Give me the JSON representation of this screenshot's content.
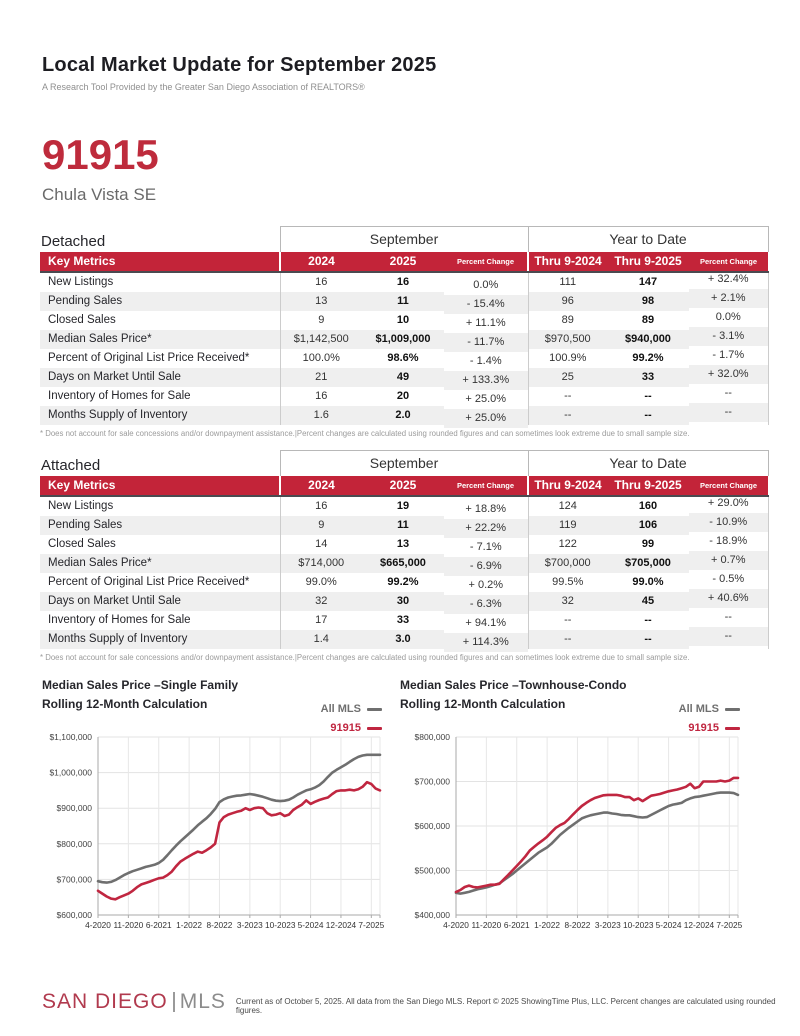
{
  "page": {
    "title": "Local Market Update for September 2025",
    "subtitle": "A Research Tool Provided by the Greater San Diego Association of REALTORS®",
    "zip_code": "91915",
    "area_name": "Chula Vista SE"
  },
  "colors": {
    "brand_red": "#C32439",
    "chart_red": "#C02640",
    "chart_gray": "#6F6F6F"
  },
  "tables": [
    {
      "section_label": "Detached",
      "group1_label": "September",
      "group2_label": "Year to Date",
      "header": [
        "Key Metrics",
        "2024",
        "2025",
        "Percent Change",
        "Thru 9-2024",
        "Thru 9-2025",
        "Percent Change"
      ],
      "rows": [
        [
          "New Listings",
          "16",
          "16",
          "0.0%",
          "111",
          "147",
          "+ 32.4%"
        ],
        [
          "Pending Sales",
          "13",
          "11",
          "- 15.4%",
          "96",
          "98",
          "+ 2.1%"
        ],
        [
          "Closed Sales",
          "9",
          "10",
          "+ 11.1%",
          "89",
          "89",
          "0.0%"
        ],
        [
          "Median Sales Price*",
          "$1,142,500",
          "$1,009,000",
          "- 11.7%",
          "$970,500",
          "$940,000",
          "- 3.1%"
        ],
        [
          "Percent of Original List Price Received*",
          "100.0%",
          "98.6%",
          "- 1.4%",
          "100.9%",
          "99.2%",
          "- 1.7%"
        ],
        [
          "Days on Market Until Sale",
          "21",
          "49",
          "+ 133.3%",
          "25",
          "33",
          "+ 32.0%"
        ],
        [
          "Inventory of Homes for Sale",
          "16",
          "20",
          "+ 25.0%",
          "--",
          "--",
          "--"
        ],
        [
          "Months Supply of Inventory",
          "1.6",
          "2.0",
          "+ 25.0%",
          "--",
          "--",
          "--"
        ]
      ],
      "footnote": "* Does not account for sale concessions and/or downpayment assistance.|Percent changes are calculated using rounded figures and can sometimes look extreme due to small sample size."
    },
    {
      "section_label": "Attached",
      "group1_label": "September",
      "group2_label": "Year to Date",
      "header": [
        "Key Metrics",
        "2024",
        "2025",
        "Percent Change",
        "Thru 9-2024",
        "Thru 9-2025",
        "Percent Change"
      ],
      "rows": [
        [
          "New Listings",
          "16",
          "19",
          "+ 18.8%",
          "124",
          "160",
          "+ 29.0%"
        ],
        [
          "Pending Sales",
          "9",
          "11",
          "+ 22.2%",
          "119",
          "106",
          "- 10.9%"
        ],
        [
          "Closed Sales",
          "14",
          "13",
          "- 7.1%",
          "122",
          "99",
          "- 18.9%"
        ],
        [
          "Median Sales Price*",
          "$714,000",
          "$665,000",
          "- 6.9%",
          "$700,000",
          "$705,000",
          "+ 0.7%"
        ],
        [
          "Percent of Original List Price Received*",
          "99.0%",
          "99.2%",
          "+ 0.2%",
          "99.5%",
          "99.0%",
          "- 0.5%"
        ],
        [
          "Days on Market Until Sale",
          "32",
          "30",
          "- 6.3%",
          "32",
          "45",
          "+ 40.6%"
        ],
        [
          "Inventory of Homes for Sale",
          "17",
          "33",
          "+ 94.1%",
          "--",
          "--",
          "--"
        ],
        [
          "Months Supply of Inventory",
          "1.4",
          "3.0",
          "+ 114.3%",
          "--",
          "--",
          "--"
        ]
      ],
      "footnote": "* Does not account for sale concessions and/or downpayment assistance.|Percent changes are calculated using rounded figures and can sometimes look extreme due to small sample size."
    }
  ],
  "chart_data": [
    {
      "type": "line",
      "title_line1": "Median Sales Price –Single Family",
      "title_line2": "Rolling 12-Month Calculation",
      "legend_position": "top-right",
      "grid": true,
      "ylim": [
        600000,
        1100000
      ],
      "ytick_step": 100000,
      "ytick_labels": [
        "$600,000",
        "$700,000",
        "$800,000",
        "$900,000",
        "$1,000,000",
        "$1,100,000"
      ],
      "x": [
        "4-2020",
        "5-2020",
        "6-2020",
        "7-2020",
        "8-2020",
        "9-2020",
        "10-2020",
        "11-2020",
        "12-2020",
        "1-2021",
        "2-2021",
        "3-2021",
        "4-2021",
        "5-2021",
        "6-2021",
        "7-2021",
        "8-2021",
        "9-2021",
        "10-2021",
        "11-2021",
        "12-2021",
        "1-2022",
        "2-2022",
        "3-2022",
        "4-2022",
        "5-2022",
        "6-2022",
        "7-2022",
        "8-2022",
        "9-2022",
        "10-2022",
        "11-2022",
        "12-2022",
        "1-2023",
        "2-2023",
        "3-2023",
        "4-2023",
        "5-2023",
        "6-2023",
        "7-2023",
        "8-2023",
        "9-2023",
        "10-2023",
        "11-2023",
        "12-2023",
        "1-2024",
        "2-2024",
        "3-2024",
        "4-2024",
        "5-2024",
        "6-2024",
        "7-2024",
        "8-2024",
        "9-2024",
        "10-2024",
        "11-2024",
        "12-2024",
        "1-2025",
        "2-2025",
        "3-2025",
        "4-2025",
        "5-2025",
        "6-2025",
        "7-2025",
        "8-2025",
        "9-2025"
      ],
      "x_tick_indices": [
        0,
        7,
        14,
        21,
        28,
        35,
        42,
        49,
        56,
        63
      ],
      "x_tick_labels": [
        "4-2020",
        "11-2020",
        "6-2021",
        "1-2022",
        "8-2022",
        "3-2023",
        "10-2023",
        "5-2024",
        "12-2024",
        "7-2025"
      ],
      "series": [
        {
          "name": "All MLS",
          "color": "#6F6F6F",
          "values": [
            695000,
            692000,
            691000,
            693000,
            698000,
            705000,
            712000,
            718000,
            723000,
            727000,
            731000,
            735000,
            738000,
            741000,
            746000,
            755000,
            768000,
            782000,
            795000,
            807000,
            818000,
            829000,
            840000,
            852000,
            862000,
            872000,
            884000,
            898000,
            917000,
            925000,
            930000,
            933000,
            935000,
            936000,
            938000,
            940000,
            938000,
            935000,
            932000,
            928000,
            924000,
            921000,
            920000,
            921000,
            924000,
            930000,
            938000,
            944000,
            950000,
            953000,
            958000,
            965000,
            975000,
            988000,
            1000000,
            1008000,
            1015000,
            1022000,
            1030000,
            1038000,
            1044000,
            1048000,
            1050000,
            1050000,
            1050000,
            1050000
          ]
        },
        {
          "name": "91915",
          "color": "#C02640",
          "values": [
            668000,
            660000,
            652000,
            646000,
            644000,
            650000,
            655000,
            660000,
            668000,
            678000,
            686000,
            690000,
            694000,
            699000,
            703000,
            705000,
            712000,
            722000,
            737000,
            750000,
            758000,
            765000,
            772000,
            778000,
            775000,
            782000,
            790000,
            800000,
            860000,
            875000,
            882000,
            886000,
            890000,
            893000,
            900000,
            895000,
            900000,
            902000,
            900000,
            886000,
            880000,
            882000,
            886000,
            878000,
            882000,
            895000,
            903000,
            910000,
            922000,
            912000,
            918000,
            923000,
            927000,
            930000,
            940000,
            948000,
            950000,
            950000,
            952000,
            950000,
            953000,
            960000,
            973000,
            968000,
            955000,
            950000
          ]
        }
      ]
    },
    {
      "type": "line",
      "title_line1": "Median Sales Price –Townhouse-Condo",
      "title_line2": "Rolling 12-Month Calculation",
      "legend_position": "top-right",
      "grid": true,
      "ylim": [
        400000,
        800000
      ],
      "ytick_step": 100000,
      "ytick_labels": [
        "$400,000",
        "$500,000",
        "$600,000",
        "$700,000",
        "$800,000"
      ],
      "x": [
        "4-2020",
        "5-2020",
        "6-2020",
        "7-2020",
        "8-2020",
        "9-2020",
        "10-2020",
        "11-2020",
        "12-2020",
        "1-2021",
        "2-2021",
        "3-2021",
        "4-2021",
        "5-2021",
        "6-2021",
        "7-2021",
        "8-2021",
        "9-2021",
        "10-2021",
        "11-2021",
        "12-2021",
        "1-2022",
        "2-2022",
        "3-2022",
        "4-2022",
        "5-2022",
        "6-2022",
        "7-2022",
        "8-2022",
        "9-2022",
        "10-2022",
        "11-2022",
        "12-2022",
        "1-2023",
        "2-2023",
        "3-2023",
        "4-2023",
        "5-2023",
        "6-2023",
        "7-2023",
        "8-2023",
        "9-2023",
        "10-2023",
        "11-2023",
        "12-2023",
        "1-2024",
        "2-2024",
        "3-2024",
        "4-2024",
        "5-2024",
        "6-2024",
        "7-2024",
        "8-2024",
        "9-2024",
        "10-2024",
        "11-2024",
        "12-2024",
        "1-2025",
        "2-2025",
        "3-2025",
        "4-2025",
        "5-2025",
        "6-2025",
        "7-2025",
        "8-2025",
        "9-2025"
      ],
      "x_tick_indices": [
        0,
        7,
        14,
        21,
        28,
        35,
        42,
        49,
        56,
        63
      ],
      "x_tick_labels": [
        "4-2020",
        "11-2020",
        "6-2021",
        "1-2022",
        "8-2022",
        "3-2023",
        "10-2023",
        "5-2024",
        "12-2024",
        "7-2025"
      ],
      "series": [
        {
          "name": "All MLS",
          "color": "#6F6F6F",
          "values": [
            450000,
            448000,
            450000,
            452000,
            455000,
            458000,
            460000,
            462000,
            465000,
            468000,
            471000,
            478000,
            485000,
            492000,
            500000,
            508000,
            516000,
            524000,
            532000,
            540000,
            546000,
            552000,
            560000,
            570000,
            580000,
            588000,
            596000,
            603000,
            610000,
            617000,
            621000,
            624000,
            626000,
            628000,
            630000,
            630000,
            628000,
            627000,
            625000,
            624000,
            624000,
            622000,
            620000,
            619000,
            620000,
            625000,
            630000,
            635000,
            640000,
            645000,
            648000,
            650000,
            652000,
            658000,
            662000,
            665000,
            666000,
            668000,
            670000,
            672000,
            674000,
            675000,
            675000,
            675000,
            674000,
            670000
          ]
        },
        {
          "name": "91915",
          "color": "#C02640",
          "values": [
            452000,
            456000,
            463000,
            466000,
            463000,
            462000,
            464000,
            466000,
            468000,
            468000,
            470000,
            480000,
            490000,
            500000,
            510000,
            521000,
            532000,
            545000,
            553000,
            561000,
            568000,
            576000,
            586000,
            596000,
            602000,
            607000,
            616000,
            626000,
            636000,
            645000,
            652000,
            658000,
            663000,
            666000,
            669000,
            670000,
            670000,
            670000,
            668000,
            665000,
            665000,
            658000,
            662000,
            656000,
            662000,
            668000,
            670000,
            672000,
            675000,
            678000,
            680000,
            682000,
            685000,
            688000,
            695000,
            685000,
            688000,
            700000,
            700000,
            700000,
            700000,
            702000,
            700000,
            702000,
            708000,
            708000
          ]
        }
      ]
    }
  ],
  "footer": {
    "logo_primary": "SAN DIEGO",
    "logo_secondary": "MLS",
    "disclaimer": "Current as of October 5, 2025. All data from the San Diego MLS. Report © 2025 ShowingTime Plus, LLC. Percent changes are calculated using rounded figures."
  }
}
